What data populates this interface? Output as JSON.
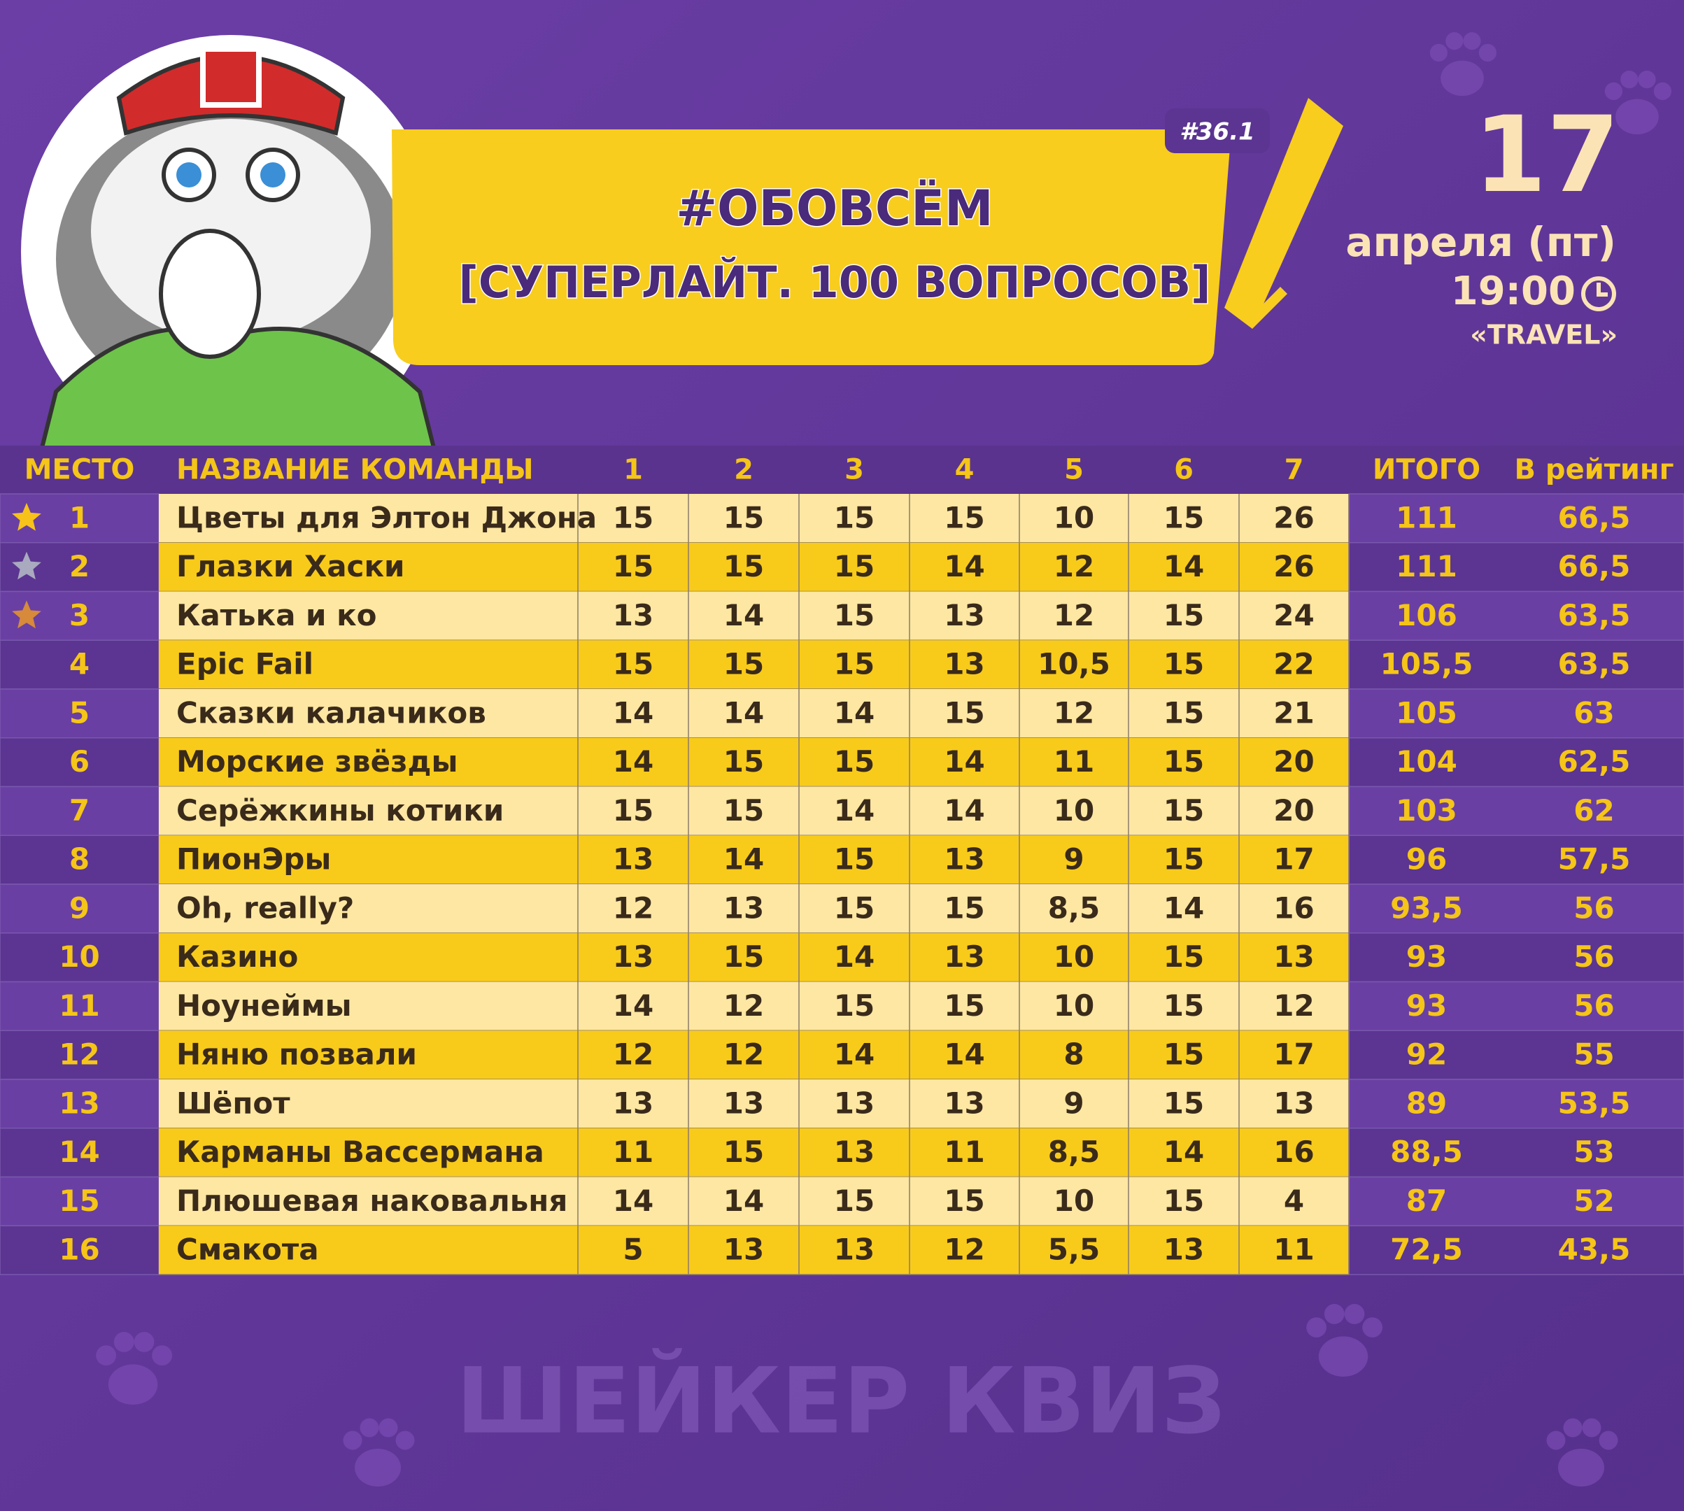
{
  "header": {
    "badge": "#36.1",
    "title": "#ОБОВСЁМ",
    "subtitle": "[СУПЕРЛАЙТ. 100 ВОПРОСОВ]",
    "day": "17",
    "date": "апреля (пт)",
    "time": "19:00",
    "venue": "«TRAVEL»"
  },
  "table": {
    "columns": [
      "МЕСТО",
      "НАЗВАНИЕ КОМАНДЫ",
      "1",
      "2",
      "3",
      "4",
      "5",
      "6",
      "7",
      "ИТОГО",
      "В рейтинг"
    ],
    "rows": [
      [
        "1",
        "Цветы для Элтон Джона",
        "15",
        "15",
        "15",
        "15",
        "10",
        "15",
        "26",
        "111",
        "66,5"
      ],
      [
        "2",
        "Глазки Хаски",
        "15",
        "15",
        "15",
        "14",
        "12",
        "14",
        "26",
        "111",
        "66,5"
      ],
      [
        "3",
        "Катька и ко",
        "13",
        "14",
        "15",
        "13",
        "12",
        "15",
        "24",
        "106",
        "63,5"
      ],
      [
        "4",
        "Epic Fail",
        "15",
        "15",
        "15",
        "13",
        "10,5",
        "15",
        "22",
        "105,5",
        "63,5"
      ],
      [
        "5",
        "Сказки калачиков",
        "14",
        "14",
        "14",
        "15",
        "12",
        "15",
        "21",
        "105",
        "63"
      ],
      [
        "6",
        "Морские звёзды",
        "14",
        "15",
        "15",
        "14",
        "11",
        "15",
        "20",
        "104",
        "62,5"
      ],
      [
        "7",
        "Серёжкины котики",
        "15",
        "15",
        "14",
        "14",
        "10",
        "15",
        "20",
        "103",
        "62"
      ],
      [
        "8",
        "ПионЭры",
        "13",
        "14",
        "15",
        "13",
        "9",
        "15",
        "17",
        "96",
        "57,5"
      ],
      [
        "9",
        "Oh, really?",
        "12",
        "13",
        "15",
        "15",
        "8,5",
        "14",
        "16",
        "93,5",
        "56"
      ],
      [
        "10",
        "Казино",
        "13",
        "15",
        "14",
        "13",
        "10",
        "15",
        "13",
        "93",
        "56"
      ],
      [
        "11",
        "Ноунеймы",
        "14",
        "12",
        "15",
        "15",
        "10",
        "15",
        "12",
        "93",
        "56"
      ],
      [
        "12",
        "Няню позвали",
        "12",
        "12",
        "14",
        "14",
        "8",
        "15",
        "17",
        "92",
        "55"
      ],
      [
        "13",
        "Шёпот",
        "13",
        "13",
        "13",
        "13",
        "9",
        "15",
        "13",
        "89",
        "53,5"
      ],
      [
        "14",
        "Карманы Вассермана",
        "11",
        "15",
        "13",
        "11",
        "8,5",
        "14",
        "16",
        "88,5",
        "53"
      ],
      [
        "15",
        "Плюшевая наковальня",
        "14",
        "14",
        "15",
        "15",
        "10",
        "15",
        "4",
        "87",
        "52"
      ],
      [
        "16",
        "Смакота",
        "5",
        "13",
        "13",
        "12",
        "5,5",
        "13",
        "11",
        "72,5",
        "43,5"
      ]
    ]
  },
  "footer": {
    "brand": "ШЕЙКЕР КВИЗ"
  }
}
